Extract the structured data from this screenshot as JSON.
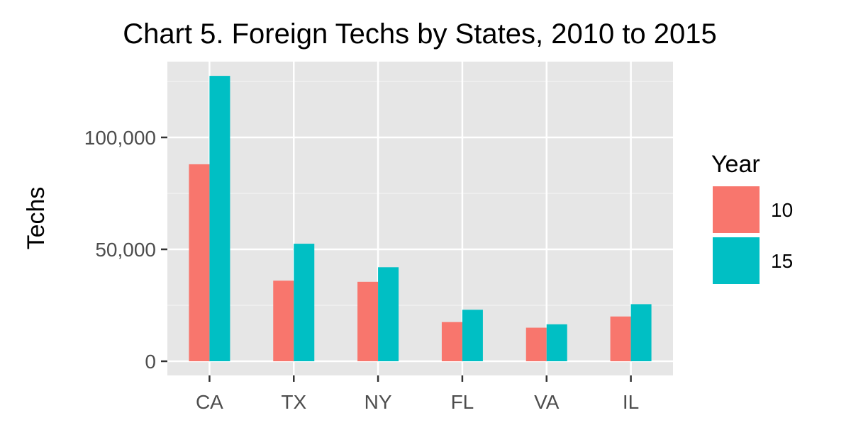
{
  "chart_data": {
    "type": "bar",
    "title": "Chart 5. Foreign Techs by States, 2010 to 2015",
    "xlabel": "",
    "ylabel": "Techs",
    "categories": [
      "CA",
      "TX",
      "NY",
      "FL",
      "VA",
      "IL"
    ],
    "series": [
      {
        "name": "10",
        "color": "#F8766D",
        "values": [
          88000,
          36000,
          35500,
          17500,
          15000,
          20000
        ]
      },
      {
        "name": "15",
        "color": "#00BFC4",
        "values": [
          127500,
          52500,
          42000,
          23000,
          16500,
          25500
        ]
      }
    ],
    "ylim": [
      0,
      130000
    ],
    "yticks": [
      0,
      50000,
      100000
    ],
    "ytick_labels": [
      "0",
      "50,000",
      "100,000"
    ],
    "grid": true,
    "legend": {
      "title": "Year",
      "position": "right"
    }
  }
}
